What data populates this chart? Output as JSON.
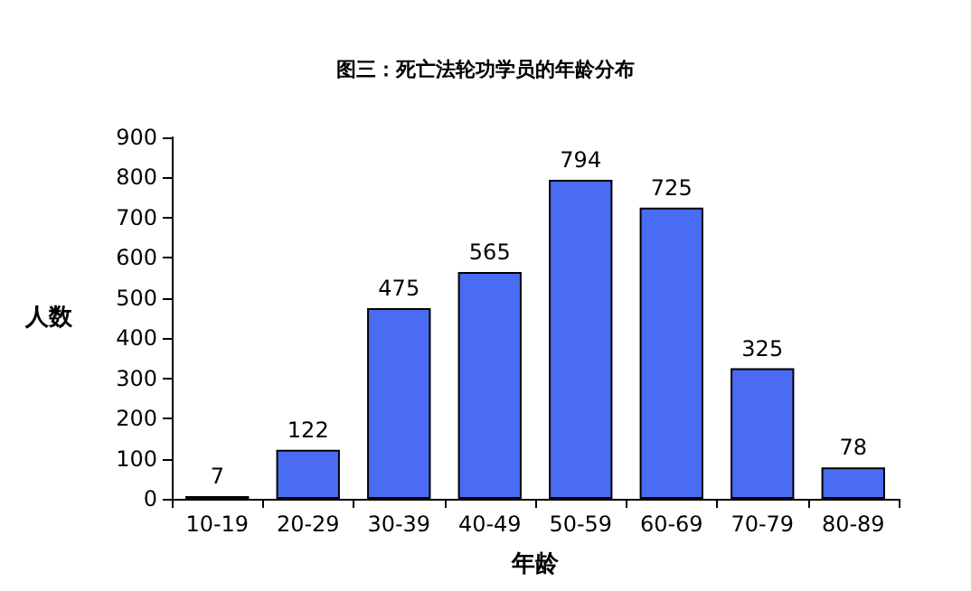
{
  "chart_data": {
    "type": "bar",
    "title": "图三：死亡法轮功学员的年龄分布",
    "xlabel": "年龄",
    "ylabel": "人数",
    "categories": [
      "10-19",
      "20-29",
      "30-39",
      "40-49",
      "50-59",
      "60-69",
      "70-79",
      "80-89"
    ],
    "values": [
      7,
      122,
      475,
      565,
      794,
      725,
      325,
      78
    ],
    "color": "#4a6cf2",
    "ylim": [
      0,
      900
    ],
    "yticks": [
      0,
      100,
      200,
      300,
      400,
      500,
      600,
      700,
      800,
      900
    ],
    "grid": false,
    "data_labels": true
  }
}
